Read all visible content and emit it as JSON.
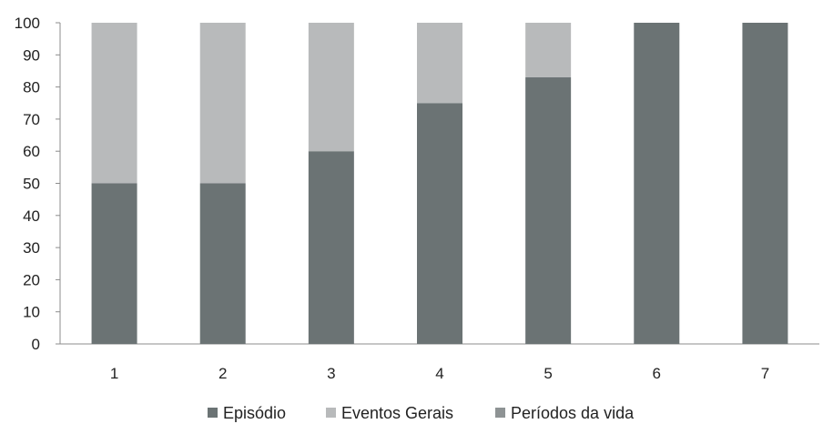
{
  "chart_data": {
    "type": "bar",
    "stacked": true,
    "categories": [
      "1",
      "2",
      "3",
      "4",
      "5",
      "6",
      "7"
    ],
    "series": [
      {
        "name": "Episódio",
        "color": "#6b7374",
        "values": [
          50,
          50,
          60,
          75,
          83,
          100,
          100
        ]
      },
      {
        "name": "Eventos Gerais",
        "color": "#b8babb",
        "values": [
          50,
          50,
          40,
          25,
          17,
          0,
          0
        ]
      },
      {
        "name": "Períodos da vida",
        "color": "#8e9394",
        "values": [
          0,
          0,
          0,
          0,
          0,
          0,
          0
        ]
      }
    ],
    "y_ticks": [
      0,
      10,
      20,
      30,
      40,
      50,
      60,
      70,
      80,
      90,
      100
    ],
    "ylim": [
      0,
      100
    ],
    "grid": false,
    "legend_position": "bottom"
  }
}
